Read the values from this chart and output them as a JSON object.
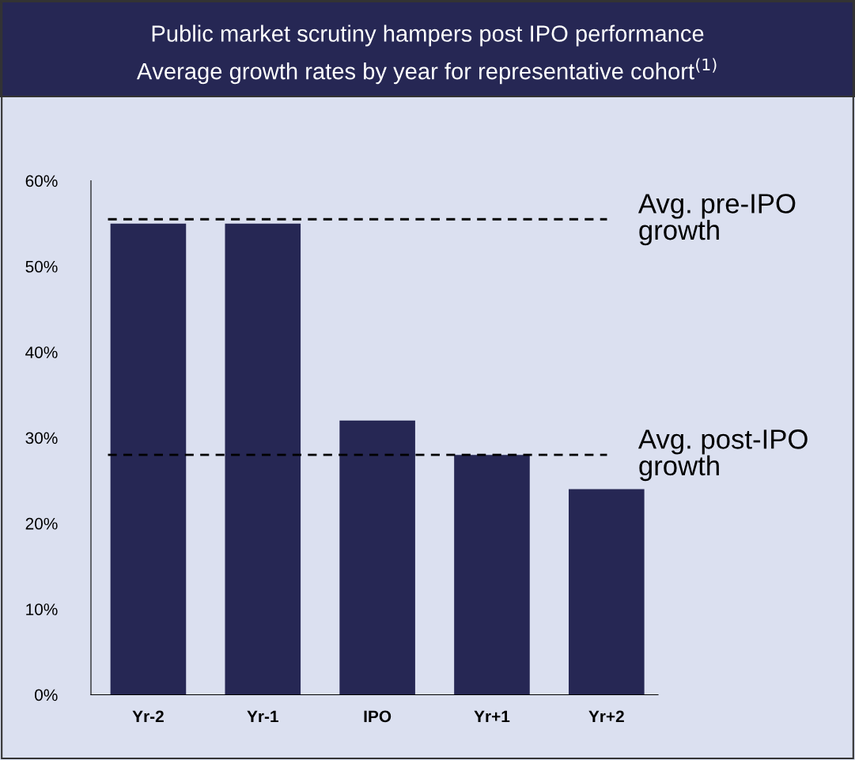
{
  "chart_data": {
    "type": "bar",
    "title": "Public market scrutiny hampers post IPO performance",
    "subtitle": "Average growth rates by year for representative cohort$^{(1)}$",
    "categories": [
      "Yr-2",
      "Yr-1",
      "IPO",
      "Yr+1",
      "Yr+2"
    ],
    "values": [
      55,
      55,
      32,
      28,
      24
    ],
    "color": "#262754",
    "ylim": [
      0,
      60
    ],
    "yticks": [
      {
        "value": 0,
        "label": "0%"
      },
      {
        "value": 10,
        "label": "10%"
      },
      {
        "value": 20,
        "label": "20%"
      },
      {
        "value": 30,
        "label": "30%"
      },
      {
        "value": 40,
        "label": "40%"
      },
      {
        "value": 50,
        "label": "50%"
      },
      {
        "value": 60,
        "label": "60%"
      }
    ],
    "ref_lines": [
      {
        "axis": "y",
        "value": 55.5,
        "label": "Avg. pre-IPO\ngrowth",
        "color": "#000000",
        "line_style": "dashed"
      },
      {
        "axis": "y",
        "value": 28,
        "label": "Avg. post-IPO\ngrowth",
        "color": "#000000",
        "line_style": "dashed"
      }
    ],
    "grid": false,
    "legend": false
  }
}
